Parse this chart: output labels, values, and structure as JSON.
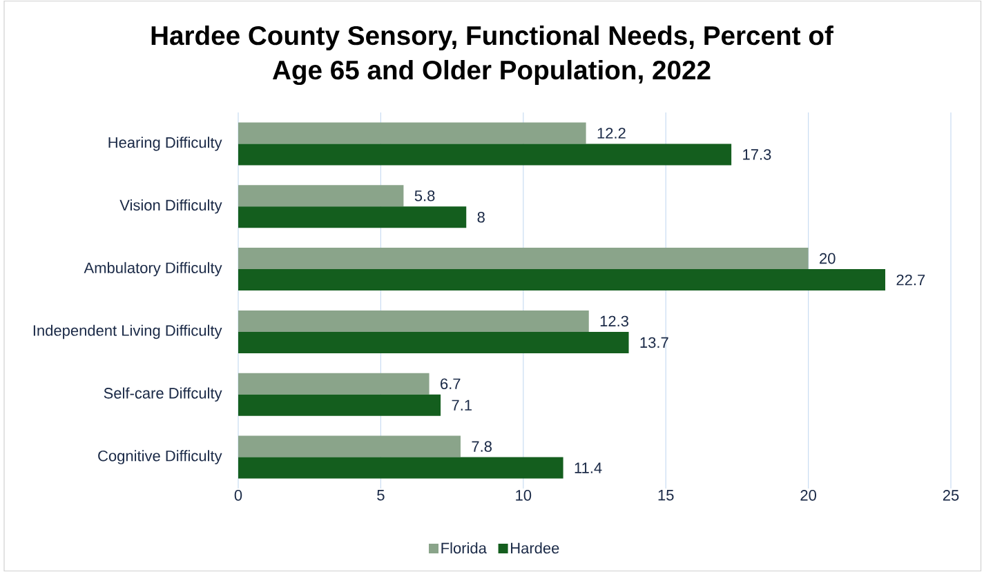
{
  "chart_data": {
    "type": "bar",
    "orientation": "horizontal",
    "title": "Hardee County Sensory, Functional Needs, Percent of Age 65 and Older Population, 2022",
    "categories": [
      "Hearing Difficulty",
      "Vision Difficulty",
      "Ambulatory Difficulty",
      "Independent Living  Difficulty",
      "Self-care Diffculty",
      "Cognitive Difficulty"
    ],
    "series": [
      {
        "name": "Florida",
        "color": "#8aa48a",
        "values": [
          12.2,
          5.8,
          20,
          12.3,
          6.7,
          7.8
        ]
      },
      {
        "name": "Hardee",
        "color": "#145e1e",
        "values": [
          17.3,
          8,
          22.7,
          13.7,
          7.1,
          11.4
        ]
      }
    ],
    "xlim": [
      0,
      25
    ],
    "xticks": [
      0,
      5,
      10,
      15,
      20,
      25
    ],
    "grid": "x",
    "legend": "bottom",
    "data_labels": true
  }
}
